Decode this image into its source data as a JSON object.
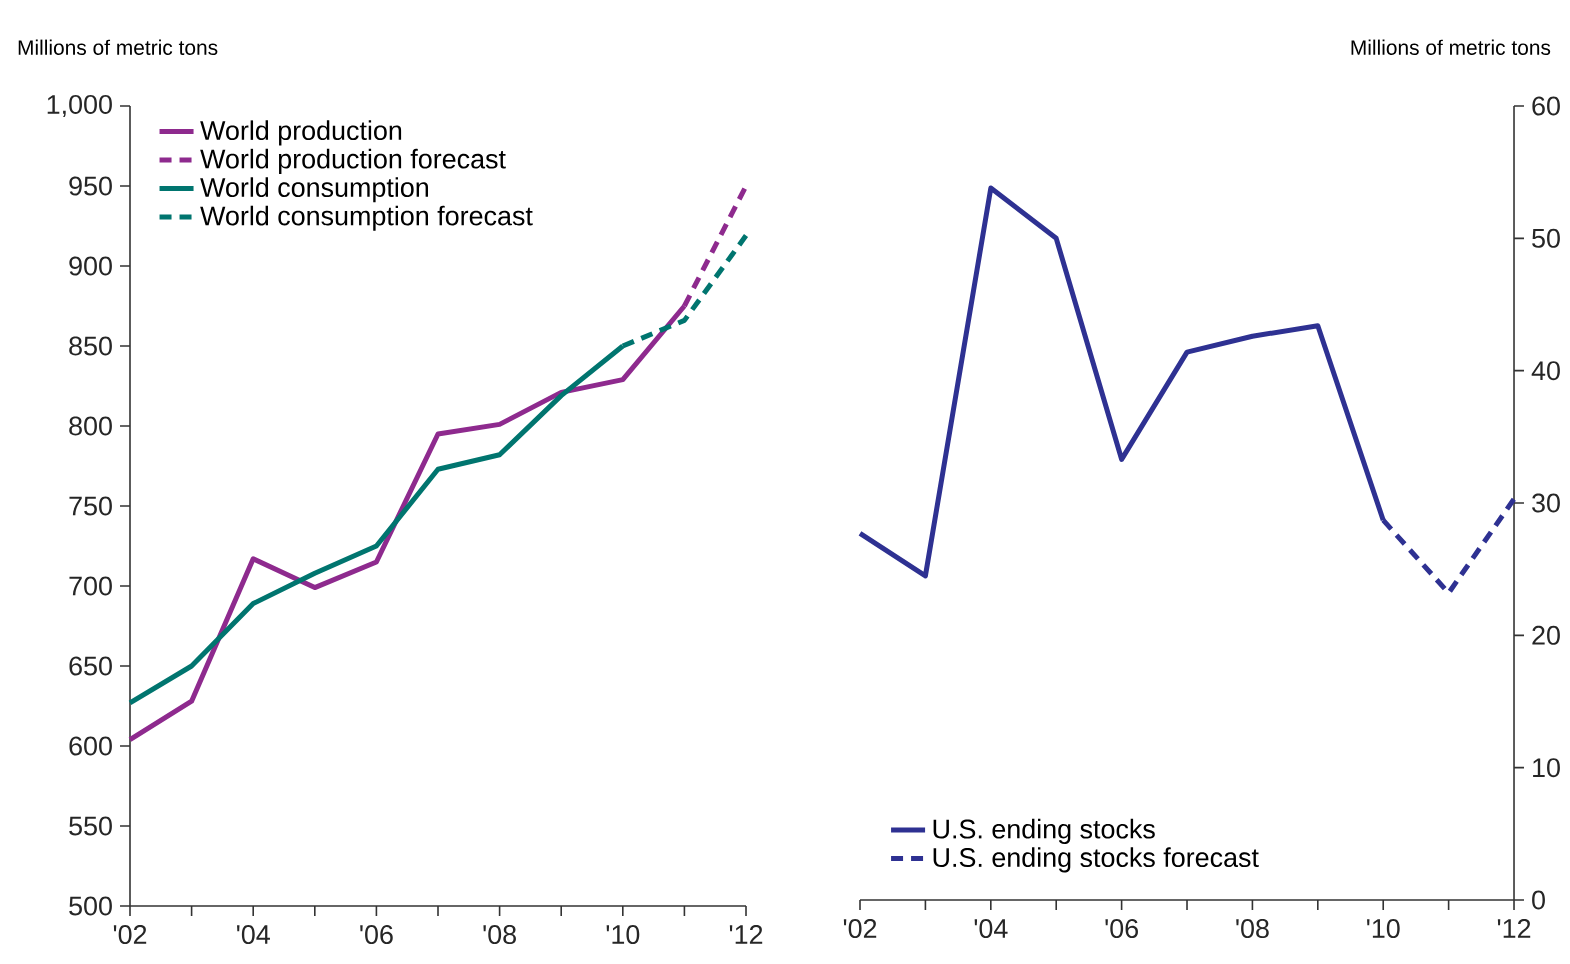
{
  "chart_data": [
    {
      "type": "line",
      "ylabel": "Millions of metric tons",
      "legend": "top left",
      "xlim": [
        2002,
        2012
      ],
      "xticks": [
        {
          "value": 2002,
          "label": "'02"
        },
        {
          "value": 2003,
          "label": null
        },
        {
          "value": 2004,
          "label": "'04"
        },
        {
          "value": 2005,
          "label": null
        },
        {
          "value": 2006,
          "label": "'06"
        },
        {
          "value": 2007,
          "label": null
        },
        {
          "value": 2008,
          "label": "'08"
        },
        {
          "value": 2009,
          "label": null
        },
        {
          "value": 2010,
          "label": "'10"
        },
        {
          "value": 2011,
          "label": null
        },
        {
          "value": 2012,
          "label": "'12"
        }
      ],
      "ylim": [
        500,
        1000
      ],
      "yticks": [
        500,
        550,
        600,
        650,
        700,
        750,
        800,
        850,
        900,
        950,
        {
          "value": 1000,
          "label": "1,000"
        }
      ],
      "series": [
        {
          "name": "World production",
          "color": "#8e2a8e",
          "line_style": "solid",
          "x": [
            2002,
            2003,
            2004,
            2005,
            2006,
            2007,
            2008,
            2009,
            2010,
            2011
          ],
          "values": [
            604,
            628,
            717,
            699,
            715,
            795,
            801,
            821,
            829,
            875
          ]
        },
        {
          "name": "World production forecast",
          "color": "#8e2a8e",
          "line_style": "dashed",
          "x": [
            2011,
            2012
          ],
          "values": [
            875,
            950
          ]
        },
        {
          "name": "World consumption",
          "color": "#00756f",
          "line_style": "solid",
          "x": [
            2002,
            2003,
            2004,
            2005,
            2006,
            2007,
            2008,
            2009,
            2010
          ],
          "values": [
            627,
            650,
            689,
            708,
            725,
            773,
            782,
            819,
            850
          ]
        },
        {
          "name": "World consumption forecast",
          "color": "#00756f",
          "line_style": "dashed",
          "x": [
            2010,
            2011,
            2012
          ],
          "values": [
            850,
            866,
            919
          ]
        }
      ]
    },
    {
      "type": "line",
      "y2label": "Millions of metric tons",
      "legend": "bottom left",
      "xlim": [
        2002,
        2012
      ],
      "xticks": [
        {
          "value": 2002,
          "label": "'02"
        },
        {
          "value": 2003,
          "label": null
        },
        {
          "value": 2004,
          "label": "'04"
        },
        {
          "value": 2005,
          "label": null
        },
        {
          "value": 2006,
          "label": "'06"
        },
        {
          "value": 2007,
          "label": null
        },
        {
          "value": 2008,
          "label": "'08"
        },
        {
          "value": 2009,
          "label": null
        },
        {
          "value": 2010,
          "label": "'10"
        },
        {
          "value": 2011,
          "label": null
        },
        {
          "value": 2012,
          "label": "'12"
        }
      ],
      "y2lim": [
        0,
        60
      ],
      "y2ticks": [
        0,
        10,
        20,
        30,
        40,
        50,
        60
      ],
      "series": [
        {
          "name": "U.S. ending stocks",
          "color": "#2e3192",
          "line_style": "solid",
          "axis": "y2",
          "x": [
            2002,
            2003,
            2004,
            2005,
            2006,
            2007,
            2008,
            2009,
            2010
          ],
          "values": [
            27.7,
            24.5,
            53.8,
            50.0,
            33.3,
            41.4,
            42.6,
            43.4,
            28.7
          ]
        },
        {
          "name": "U.S. ending stocks forecast",
          "color": "#2e3192",
          "line_style": "dashed",
          "axis": "y2",
          "x": [
            2010,
            2011,
            2012
          ],
          "values": [
            28.7,
            23.2,
            30.3
          ]
        }
      ]
    }
  ]
}
